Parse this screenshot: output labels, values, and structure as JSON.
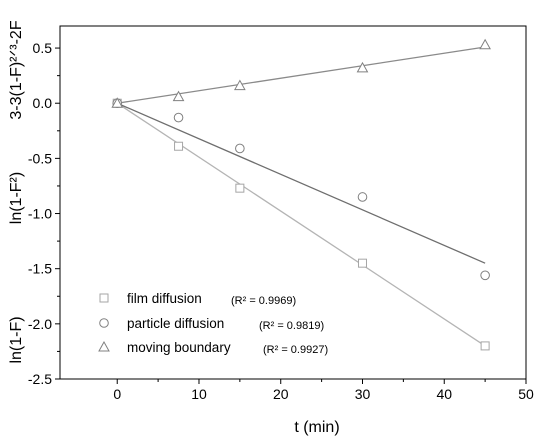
{
  "chart_data": {
    "type": "scatter",
    "xlabel": "t (min)",
    "ylabel_parts": [
      "ln(1-F)",
      "ln(1-F²)",
      "3-3(1-F)²ᐟ³-2F"
    ],
    "xlim": [
      -7,
      50
    ],
    "ylim": [
      -2.5,
      0.7
    ],
    "x_ticks": [
      0,
      10,
      20,
      30,
      40,
      50
    ],
    "x_tick_labels": [
      "0",
      "10",
      "20",
      "30",
      "40",
      "50"
    ],
    "y_ticks": [
      0.5,
      0.0,
      -0.5,
      -1.0,
      -1.5,
      -2.0,
      -2.5
    ],
    "y_tick_labels": [
      "0.5",
      "0.0",
      "-0.5",
      "-1.0",
      "-1.5",
      "-2.0",
      "-2.5"
    ],
    "grid": false,
    "legend_position": "bottom-left",
    "series": [
      {
        "name": "film diffusion",
        "r2_label": "(R² = 0.9969)",
        "marker": "square",
        "color": "#a6a6a6",
        "line_color": "#b4b4b4",
        "x": [
          0,
          7.5,
          15,
          30,
          45
        ],
        "y": [
          0,
          -0.39,
          -0.77,
          -1.45,
          -2.2
        ],
        "fit": {
          "x": [
            0,
            45
          ],
          "y": [
            0,
            -2.2
          ]
        }
      },
      {
        "name": "particle diffusion",
        "r2_label": "(R² = 0.9819)",
        "marker": "circle",
        "color": "#808080",
        "line_color": "#6e6e6e",
        "x": [
          0,
          7.5,
          15,
          30,
          45
        ],
        "y": [
          0,
          -0.13,
          -0.41,
          -0.85,
          -1.56
        ],
        "fit": {
          "x": [
            0,
            45
          ],
          "y": [
            0,
            -1.45
          ]
        }
      },
      {
        "name": "moving boundary",
        "r2_label": "(R² = 0.9927)",
        "marker": "triangle",
        "color": "#808080",
        "line_color": "#8a8a8a",
        "x": [
          0,
          7.5,
          15,
          30,
          45
        ],
        "y": [
          0,
          0.06,
          0.16,
          0.32,
          0.53
        ],
        "fit": {
          "x": [
            0,
            45
          ],
          "y": [
            0,
            0.51
          ]
        }
      }
    ]
  }
}
